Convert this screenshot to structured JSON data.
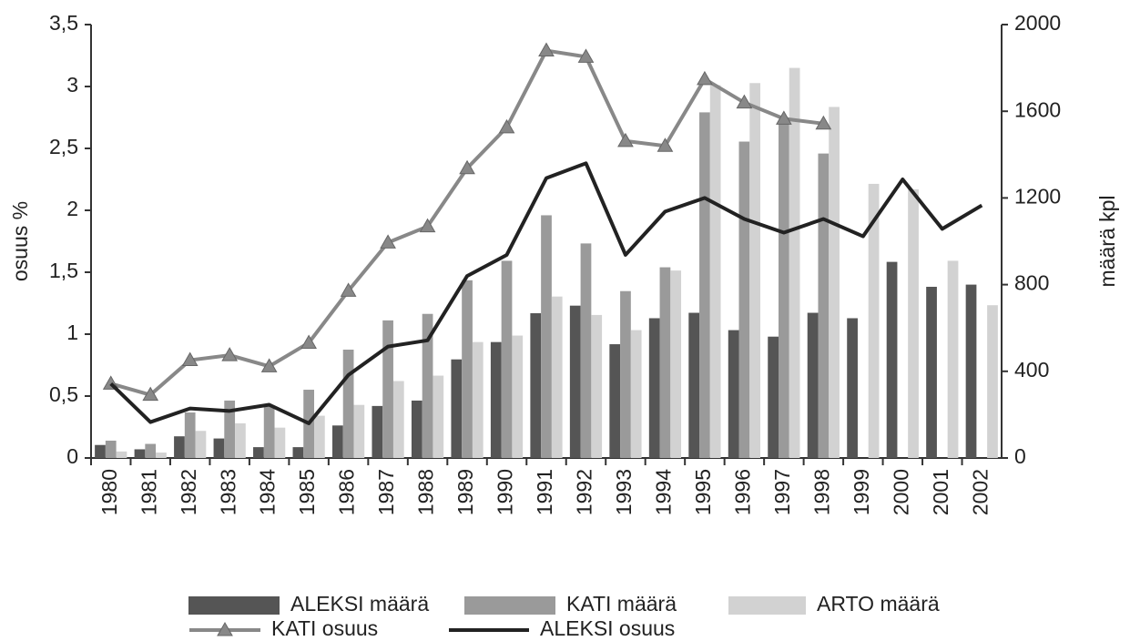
{
  "chart_data": {
    "type": "bar-line-combo",
    "ylabel": "osuus %",
    "y2label": "määrä kpl",
    "categories": [
      "1980",
      "1981",
      "1982",
      "1983",
      "1984",
      "1985",
      "1986",
      "1987",
      "1988",
      "1989",
      "1990",
      "1991",
      "1992",
      "1993",
      "1994",
      "1995",
      "1996",
      "1997",
      "1998",
      "1999",
      "2000",
      "2001",
      "2002"
    ],
    "ylim": [
      0,
      3.5
    ],
    "yticks": [
      0,
      {
        "value": 0.5,
        "label": "0,5"
      },
      1,
      {
        "value": 1.5,
        "label": "1,5"
      },
      2,
      {
        "value": 2.5,
        "label": "2,5"
      },
      3,
      {
        "value": 3.5,
        "label": "3,5"
      }
    ],
    "y2lim": [
      0,
      2000
    ],
    "y2ticks": [
      0,
      400,
      800,
      1200,
      1600,
      2000
    ],
    "legend": "bottom",
    "series": [
      {
        "name": "ALEKSI määrä",
        "kind": "bar",
        "axis": "y2",
        "color": "#555555",
        "values": [
          60,
          40,
          100,
          90,
          50,
          50,
          150,
          240,
          265,
          455,
          535,
          668,
          703,
          525,
          645,
          670,
          590,
          560,
          670,
          645,
          905,
          790,
          800
        ]
      },
      {
        "name": "KATI määrä",
        "kind": "bar",
        "axis": "y2",
        "color": "#9a9a9a",
        "values": [
          80,
          65,
          210,
          265,
          240,
          315,
          500,
          635,
          665,
          820,
          910,
          1120,
          990,
          770,
          880,
          1595,
          1460,
          1555,
          1405,
          null,
          null,
          null,
          null
        ]
      },
      {
        "name": "ARTO määrä",
        "kind": "bar",
        "axis": "y2",
        "color": "#d2d2d2",
        "values": [
          30,
          25,
          125,
          160,
          140,
          195,
          245,
          355,
          380,
          535,
          565,
          745,
          660,
          590,
          865,
          1720,
          1730,
          1800,
          1620,
          1265,
          1240,
          910,
          705
        ]
      },
      {
        "name": "KATI osuus",
        "kind": "line",
        "axis": "y",
        "color": "#888888",
        "marker": "triangle",
        "values": [
          0.6,
          0.51,
          0.79,
          0.83,
          0.74,
          0.93,
          1.35,
          1.74,
          1.87,
          2.34,
          2.67,
          3.29,
          3.24,
          2.56,
          2.52,
          3.06,
          2.87,
          2.74,
          2.7,
          null,
          null,
          null,
          null
        ]
      },
      {
        "name": "ALEKSI osuus",
        "kind": "line",
        "axis": "y",
        "color": "#222222",
        "values": [
          0.6,
          0.29,
          0.4,
          0.38,
          0.43,
          0.28,
          0.67,
          0.9,
          0.95,
          1.47,
          1.64,
          2.26,
          2.38,
          1.64,
          1.99,
          2.1,
          1.93,
          1.82,
          1.93,
          1.79,
          2.25,
          1.85,
          2.04
        ]
      }
    ]
  }
}
